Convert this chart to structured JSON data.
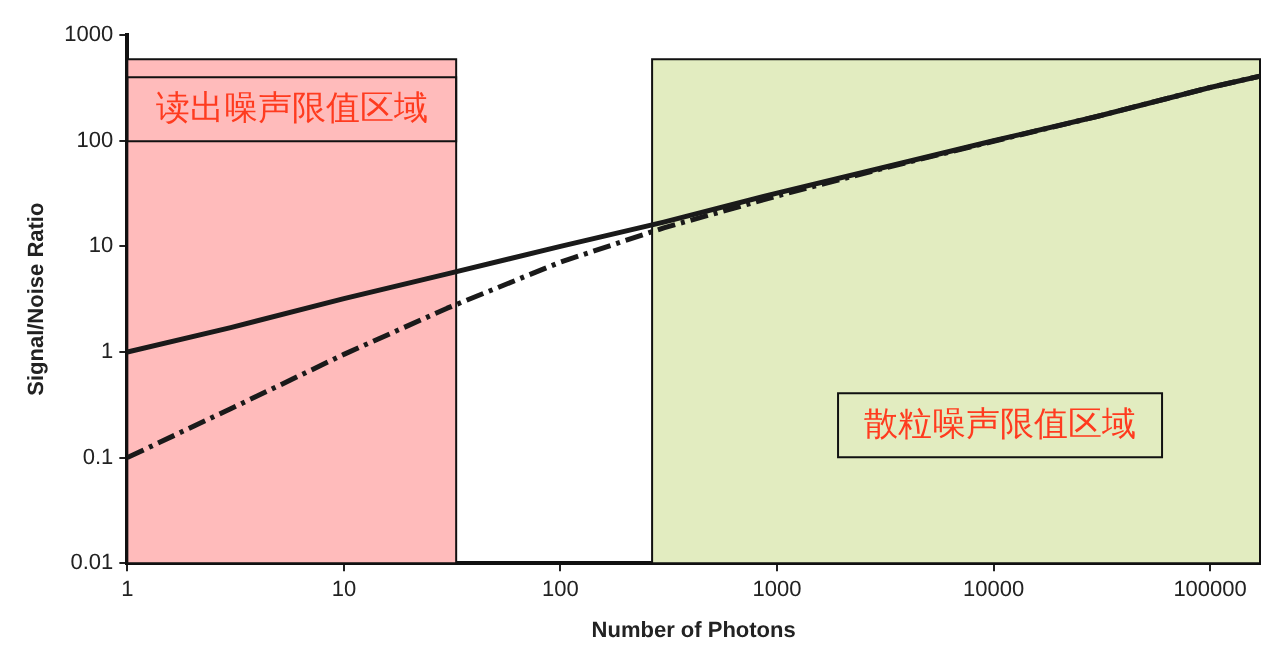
{
  "chart_data": {
    "type": "line",
    "xlabel": "Number of Photons",
    "ylabel": "Signal/Noise Ratio",
    "xlim": [
      1,
      170000
    ],
    "ylim": [
      0.01,
      1000
    ],
    "log": "xy",
    "grid": false,
    "legend": false,
    "marker": "none",
    "xticks": [
      1,
      10,
      100,
      1000,
      10000,
      100000
    ],
    "yticks": [
      0.01,
      0.1,
      1,
      10,
      100,
      1000
    ],
    "x": [
      1,
      3,
      10,
      30,
      100,
      300,
      1000,
      3000,
      10000,
      30000,
      100000,
      170000
    ],
    "series": [
      {
        "color": "#1a1a1a",
        "line_style": "solid",
        "values": [
          1,
          1.7,
          3.2,
          5.5,
          10,
          17,
          32,
          55,
          100,
          170,
          320,
          410
        ]
      },
      {
        "color": "#1a1a1a",
        "line_style": "dashed",
        "values": [
          0.1,
          0.29,
          0.95,
          2.6,
          7.1,
          15,
          30,
          54,
          99,
          170,
          320,
          410
        ]
      }
    ],
    "bands": [
      {
        "axis": "x",
        "from": 1,
        "to": 33,
        "label": "读出噪声限值区域",
        "color": "#ffbbbb"
      },
      {
        "axis": "x",
        "from": 265,
        "to": 170000,
        "label": "散粒噪声限值区域",
        "color": "#e2ecc0"
      }
    ]
  }
}
